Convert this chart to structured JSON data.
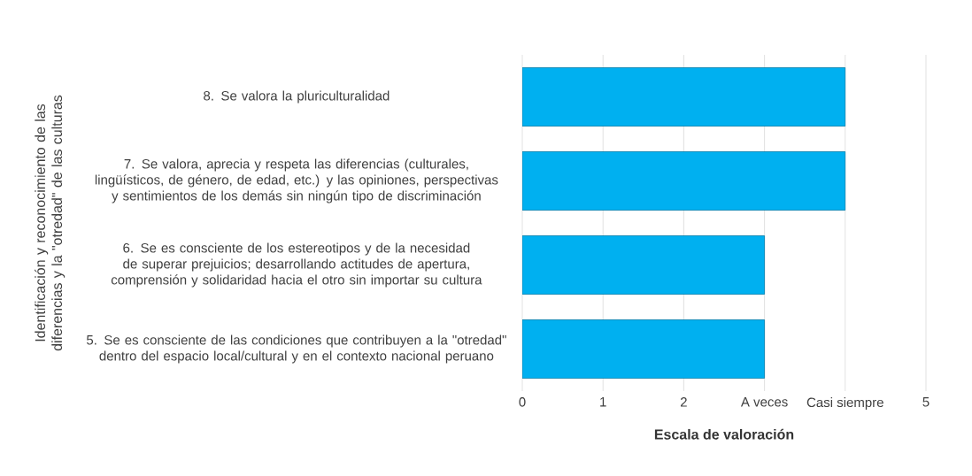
{
  "chart_data": {
    "type": "bar",
    "orientation": "horizontal",
    "ylabel": "Identificación y reconocimiento de las diferencias y la \"otredad\" de las culturas",
    "xlabel": "Escala de valoración",
    "categories": [
      "8. Se valora la pluriculturalidad",
      "7. Se valora, aprecia y respeta las diferencias (culturales, lingüísticos, de género, de edad, etc.) y las opiniones, perspectivas y sentimientos de los demás sin ningún tipo de discriminación",
      "6. Se es consciente de los estereotipos y de la necesidad de superar prejuicios; desarrollando actitudes de apertura, comprensión y solidaridad hacia el otro sin importar su cultura",
      "5. Se es consciente de las condiciones que contribuyen a la \"otredad\" dentro del espacio local/cultural y en el contexto nacional peruano"
    ],
    "values": [
      4,
      4,
      3,
      3
    ],
    "color": "#00b0f0",
    "xlim": [
      0,
      5
    ],
    "xticks": [
      0,
      1,
      2,
      {
        "value": 3,
        "label": "A veces"
      },
      {
        "value": 4,
        "label": "Casi siempre"
      },
      5
    ],
    "grid": "x"
  }
}
